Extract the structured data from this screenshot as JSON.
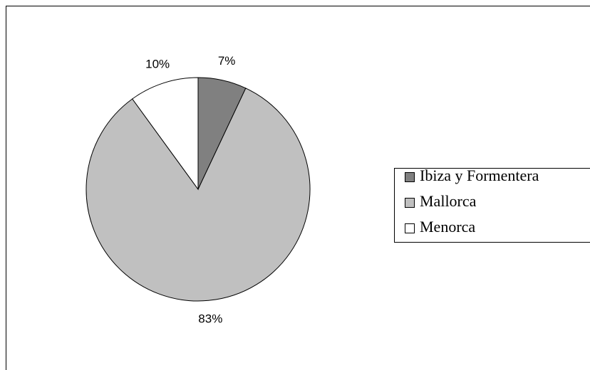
{
  "chart_data": {
    "type": "pie",
    "categories": [
      "Ibiza y Formentera",
      "Mallorca",
      "Menorca"
    ],
    "values": [
      7,
      83,
      10
    ],
    "value_labels": [
      "7%",
      "83%",
      "10%"
    ],
    "colors": [
      "#808080",
      "#c0c0c0",
      "#ffffff"
    ],
    "legend": "right"
  }
}
